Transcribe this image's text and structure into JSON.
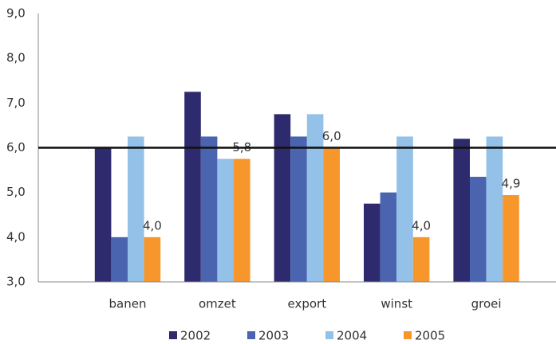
{
  "chart_data": {
    "type": "bar",
    "categories": [
      "banen",
      "omzet",
      "export",
      "winst",
      "groei"
    ],
    "series": [
      {
        "name": "2002",
        "color": "#2e2a6e",
        "values": [
          6.0,
          7.25,
          6.75,
          4.75,
          6.2
        ]
      },
      {
        "name": "2003",
        "color": "#4a64b0",
        "values": [
          4.0,
          6.25,
          6.25,
          5.0,
          5.35
        ]
      },
      {
        "name": "2004",
        "color": "#93c1e8",
        "values": [
          6.25,
          5.75,
          6.75,
          6.25,
          6.25
        ]
      },
      {
        "name": "2005",
        "color": "#f7962a",
        "values": [
          4.0,
          5.75,
          6.0,
          4.0,
          4.94
        ],
        "value_labels": [
          "4,0",
          "5,8",
          "6,0",
          "4,0",
          "4,9"
        ]
      }
    ],
    "ylim": [
      3,
      9
    ],
    "yticks": [
      {
        "value": 3,
        "label": "3,0"
      },
      {
        "value": 4,
        "label": "4,0"
      },
      {
        "value": 5,
        "label": "5,0"
      },
      {
        "value": 6,
        "label": "6,0"
      },
      {
        "value": 7,
        "label": "7,0"
      },
      {
        "value": 8,
        "label": "8,0"
      },
      {
        "value": 9,
        "label": "9,0"
      }
    ],
    "reference_line": 6,
    "legend": "bottom"
  }
}
